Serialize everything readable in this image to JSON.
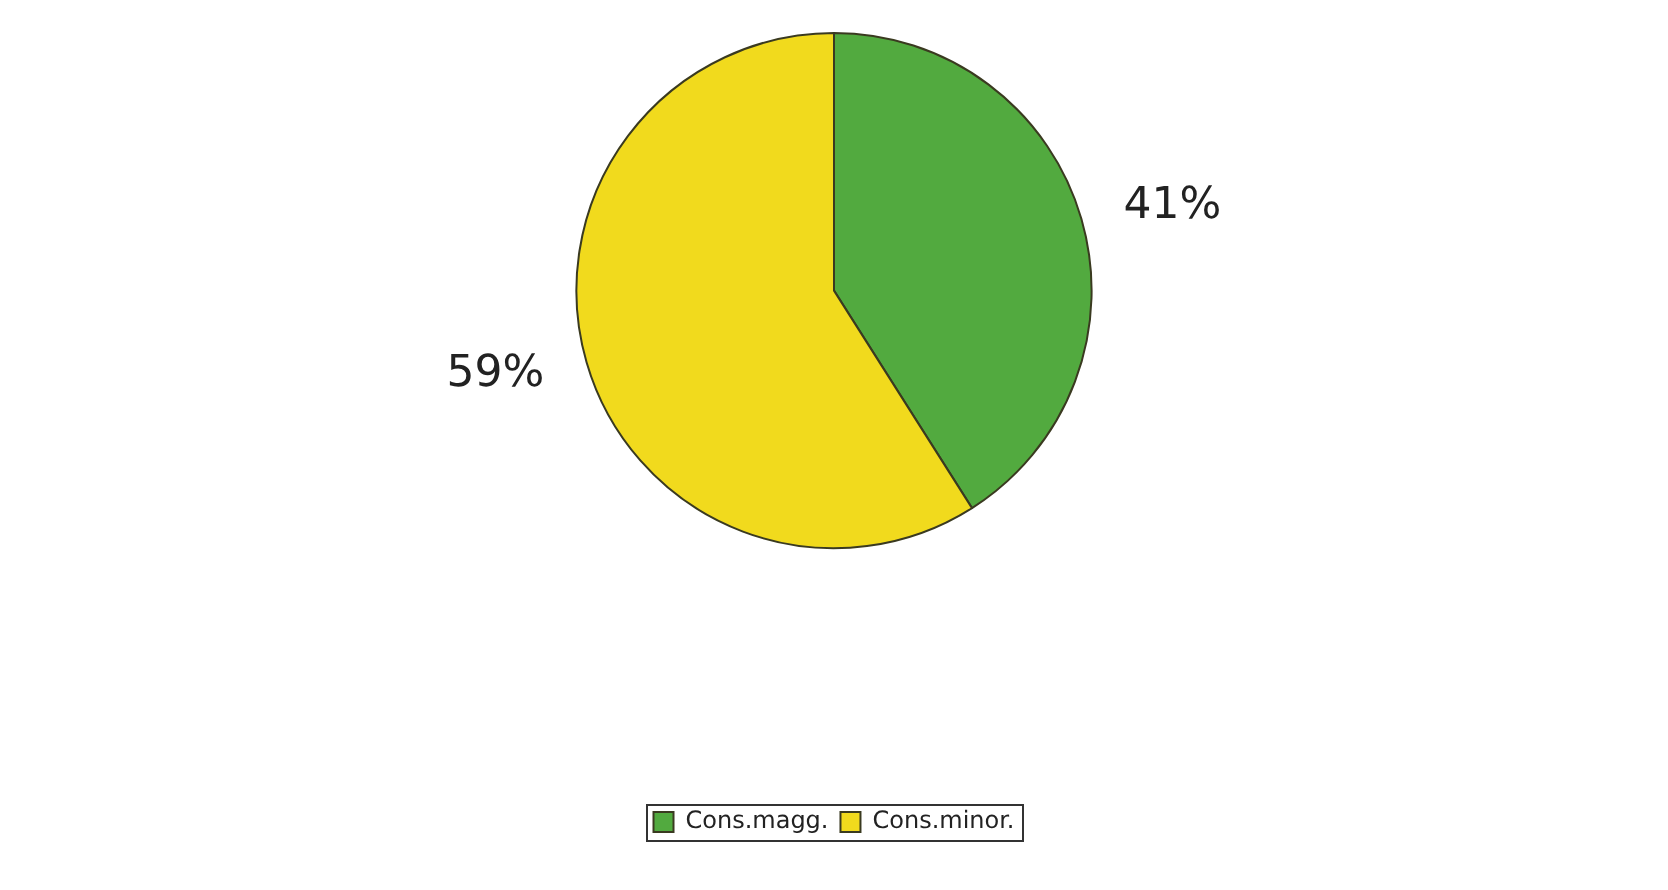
{
  "chart_data": {
    "type": "pie",
    "categories": [
      "Cons.magg.",
      "Cons.minor."
    ],
    "values": [
      41,
      59
    ],
    "colors": [
      "#52aa3f",
      "#f1da1d"
    ],
    "value_labels": [
      "41%",
      "59%"
    ],
    "legend": "bottom"
  }
}
